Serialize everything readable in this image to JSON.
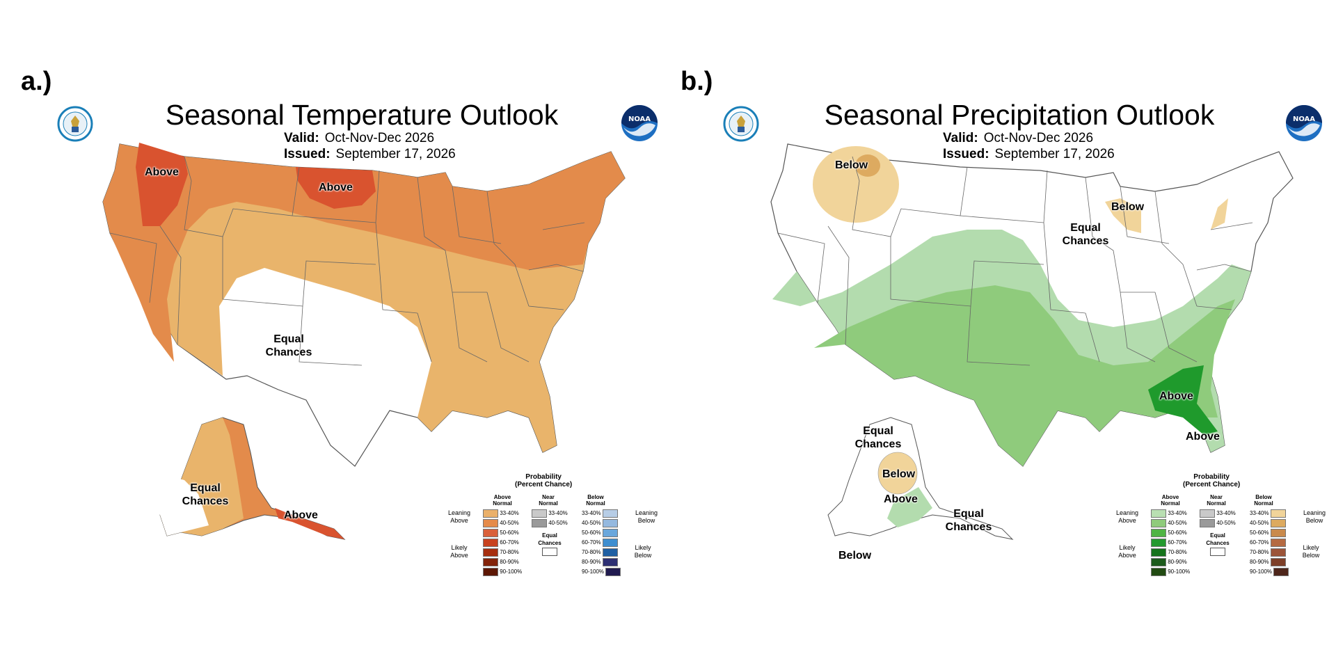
{
  "panels": [
    {
      "letter": "a.)",
      "title": "Seasonal Temperature Outlook",
      "valid_label": "Valid:",
      "valid_value": "Oct-Nov-Dec 2026",
      "issued_label": "Issued:",
      "issued_value": "September 17, 2026",
      "regions": [
        "Above",
        "Above",
        "Equal Chances",
        "Equal Chances",
        "Above"
      ],
      "map_colors": {
        "lean_above": "#e9b46b",
        "above_40_50": "#e38b4b",
        "above_50_60": "#d9532f"
      }
    },
    {
      "letter": "b.)",
      "title": "Seasonal Precipitation Outlook",
      "valid_label": "Valid:",
      "valid_value": "Oct-Nov-Dec 2026",
      "issued_label": "Issued:",
      "issued_value": "September 17, 2026",
      "regions": [
        "Below",
        "Below",
        "Equal Chances",
        "Above",
        "Above",
        "Equal Chances",
        "Below",
        "Above",
        "Equal Chances",
        "Below"
      ],
      "map_colors": {
        "lean_above": "#b3dcae",
        "above_40_50": "#8fcb7c",
        "above_60_70": "#1f9a2c",
        "below_33_40": "#f1d49a"
      }
    }
  ],
  "legend_text": {
    "title_line1": "Probability",
    "title_line2": "(Percent Chance)",
    "col_above": "Above Normal",
    "col_near": "Near Normal",
    "col_below": "Below Normal",
    "ranges": [
      "33-40%",
      "40-50%",
      "50-60%",
      "60-70%",
      "70-80%",
      "80-90%",
      "90-100%"
    ],
    "near_ranges": [
      "33-40%",
      "40-50%"
    ],
    "equal_chances": "Equal Chances",
    "leaning_above": "Leaning Above",
    "likely_above": "Likely Above",
    "leaning_below": "Leaning Below",
    "likely_below": "Likely Below"
  },
  "legend_colors": {
    "temp_above": [
      "#eab06a",
      "#e58b4a",
      "#d9603a",
      "#c8421f",
      "#a72f10",
      "#83230a",
      "#5d1704"
    ],
    "temp_below": [
      "#b7cde6",
      "#95b9df",
      "#6aa7dc",
      "#3e8ed0",
      "#1f5fa3",
      "#2d2f73",
      "#201a4f"
    ],
    "precip_above": [
      "#b9dfb2",
      "#8fcb7c",
      "#4fb444",
      "#24992f",
      "#16731c",
      "#1c5a1c",
      "#214a12"
    ],
    "precip_below": [
      "#f1d49a",
      "#ddaa60",
      "#c98a4c",
      "#b56a42",
      "#9c5439",
      "#7e3f28",
      "#4e261b"
    ],
    "near": [
      "#c9c9c9",
      "#9a9a9a"
    ]
  },
  "logos": {
    "left": "doc-seal",
    "right": "NOAA"
  }
}
